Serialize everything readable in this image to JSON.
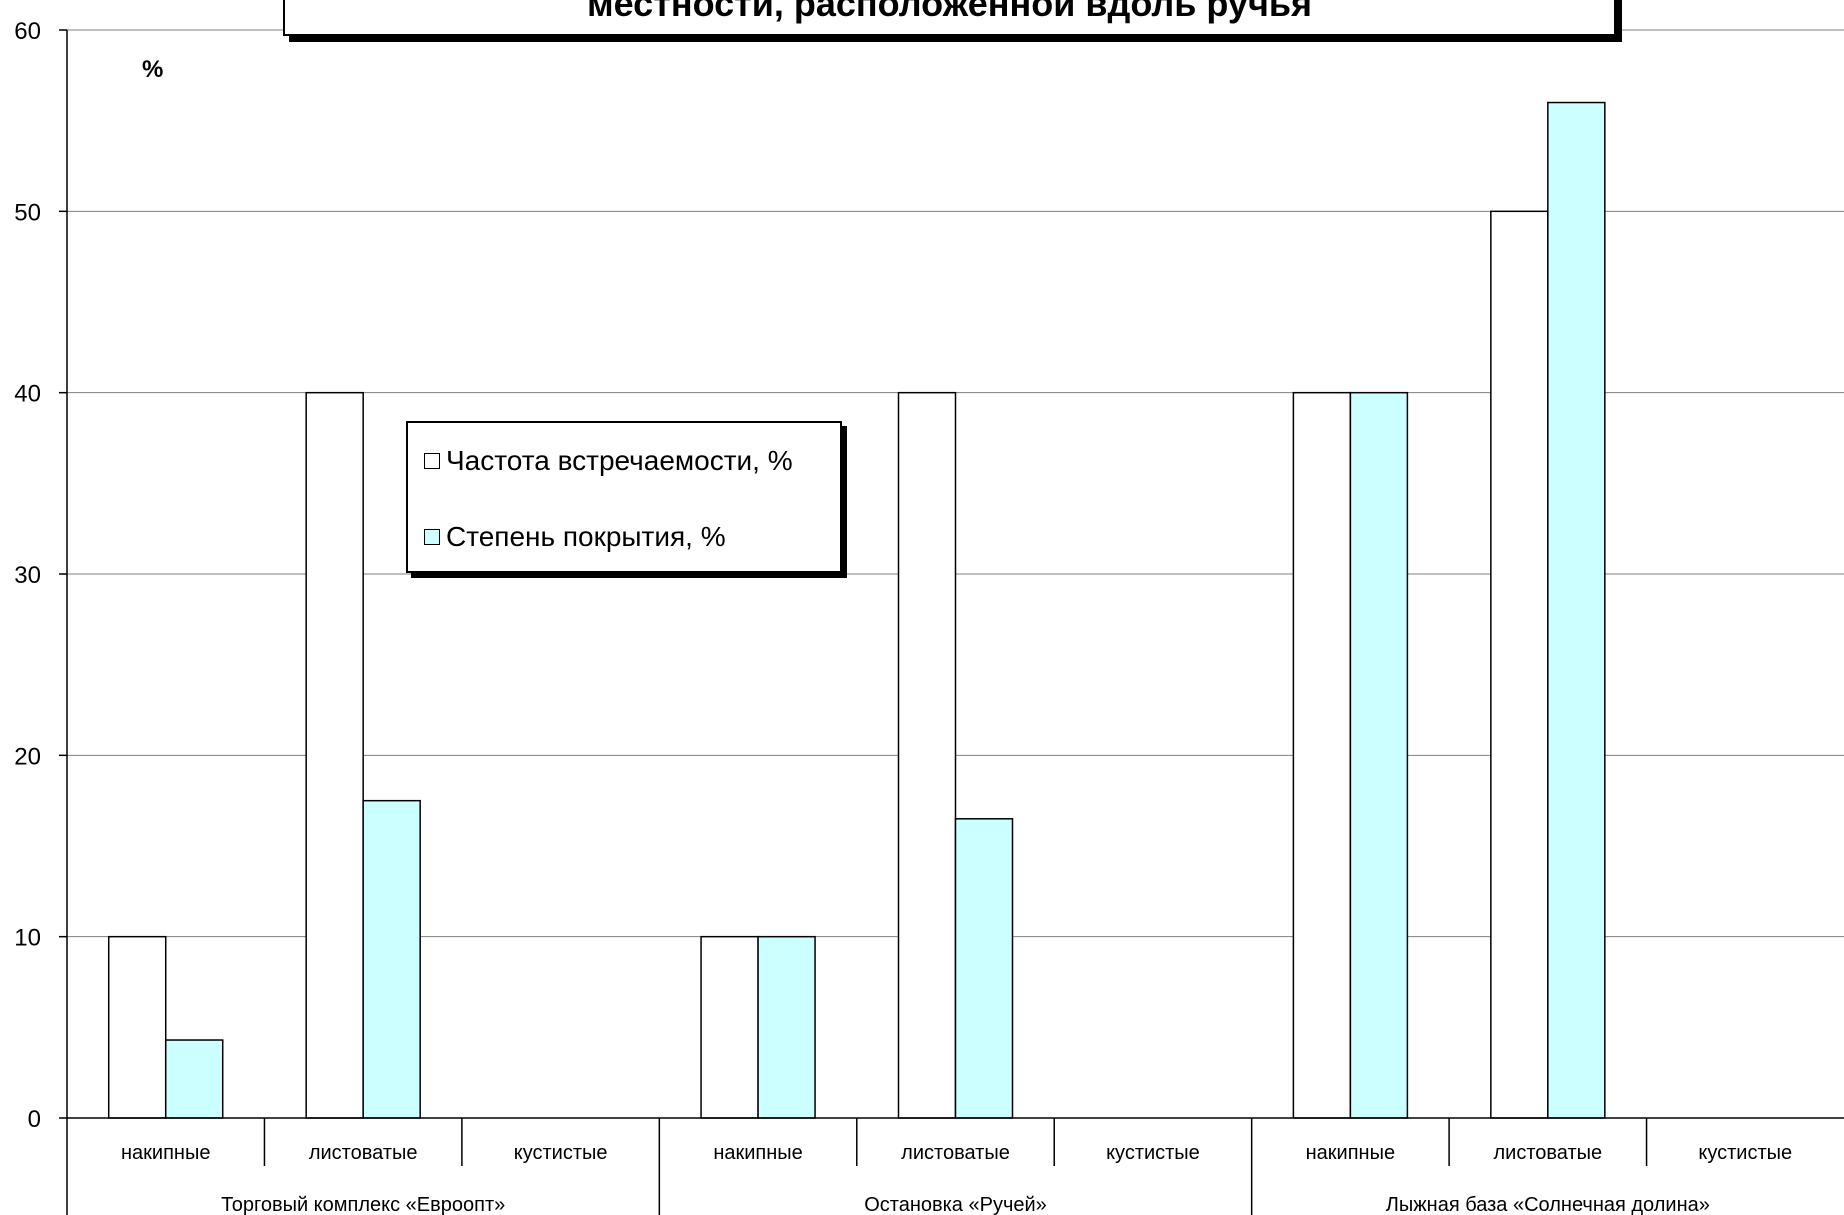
{
  "chart_data": {
    "type": "bar",
    "title": "местности, расположенной вдоль ручья",
    "ylabel": "%",
    "ylim": [
      0,
      60
    ],
    "yticks": [
      0,
      10,
      20,
      30,
      40,
      50,
      60
    ],
    "grid": true,
    "legend_position": "upper-left",
    "groups": [
      {
        "name": "Торговый комплекс «Евроопт»",
        "categories": [
          "накипные",
          "листоватые",
          "кустистые"
        ]
      },
      {
        "name": "Остановка «Ручей»",
        "categories": [
          "накипные",
          "листоватые",
          "кустистые"
        ]
      },
      {
        "name": "Лыжная база «Солнечная долина»",
        "categories": [
          "накипные",
          "листоватые",
          "кустистые"
        ]
      }
    ],
    "series": [
      {
        "name": "Частота встречаемости, %",
        "color": "#ffffff",
        "values": [
          10,
          40,
          0,
          10,
          40,
          0,
          40,
          50,
          0
        ]
      },
      {
        "name": "Степень покрытия, %",
        "color": "#ccffff",
        "values": [
          4.3,
          17.5,
          0,
          10,
          16.5,
          0,
          40,
          56,
          0
        ]
      }
    ]
  }
}
